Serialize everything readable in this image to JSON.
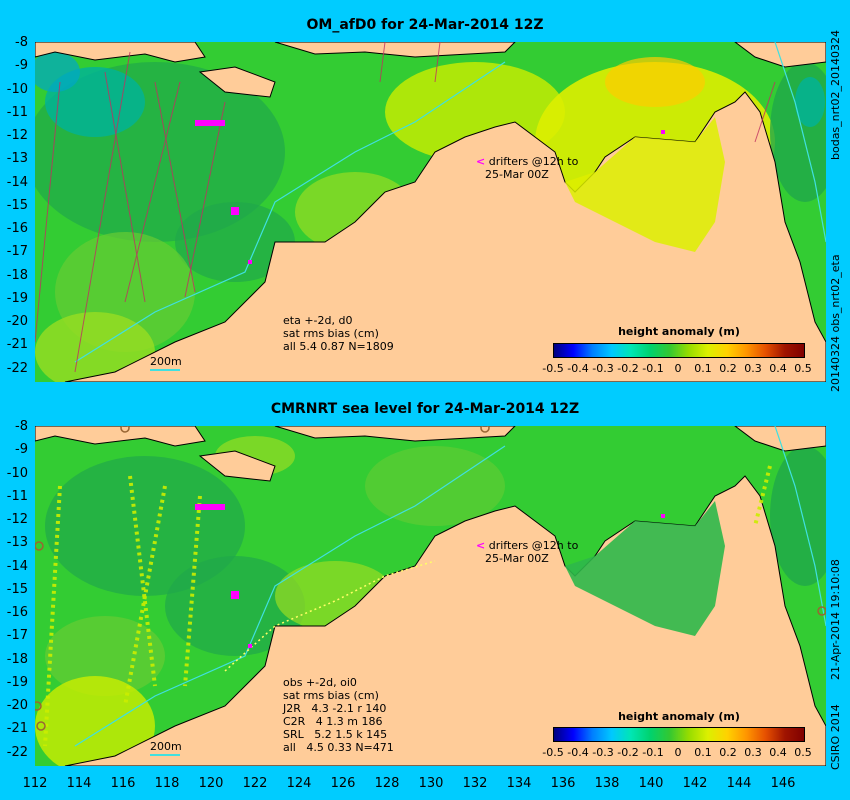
{
  "panel_top": {
    "title": "OM_afD0 for 24-Mar-2014 12Z",
    "info_lines": "eta +-2d, d0\nsat rms bias (cm)\nall 5.4 0.87 N=1809",
    "scale_label": "200m",
    "drifter_label_1": "drifters @12h to",
    "drifter_label_2": "25-Mar 00Z"
  },
  "panel_bottom": {
    "title": "CMRNRT sea level  for 24-Mar-2014 12Z",
    "info_lines": "obs +-2d, oi0\nsat rms bias (cm)\nJ2R   4.3 -2.1 r 140\nC2R   4 1.3 m 186\nSRL   5.2 1.5 k 145\nall   4.5 0.33 N=471",
    "scale_label": "200m",
    "drifter_label_1": "drifters @12h to",
    "drifter_label_2": "25-Mar 00Z"
  },
  "colorbar": {
    "title": "height anomaly (m)",
    "ticks": [
      "-0.5",
      "-0.4",
      "-0.3",
      "-0.2",
      "-0.1",
      "0",
      "0.1",
      "0.2",
      "0.3",
      "0.4",
      "0.5"
    ]
  },
  "y_ticks": [
    "-8",
    "-9",
    "-10",
    "-11",
    "-12",
    "-13",
    "-14",
    "-15",
    "-16",
    "-17",
    "-18",
    "-19",
    "-20",
    "-21",
    "-22"
  ],
  "x_ticks": [
    "112",
    "114",
    "116",
    "118",
    "120",
    "122",
    "124",
    "126",
    "128",
    "130",
    "132",
    "134",
    "136",
    "138",
    "140",
    "142",
    "144",
    "146"
  ],
  "side_text": {
    "top_upper": "bodas_nrt02_20140324",
    "top_lower": "20140324 obs_nrt02_eta",
    "bottom_upper": "21-Apr-2014 19:10:08",
    "bottom_lower": "CSIRO 2014"
  },
  "colors": {
    "frame": "#00ccff",
    "land": "#ffcc99",
    "sea_green": "#33cc33",
    "sea_dark": "#1fa84a",
    "sea_yellow": "#ccee00"
  }
}
